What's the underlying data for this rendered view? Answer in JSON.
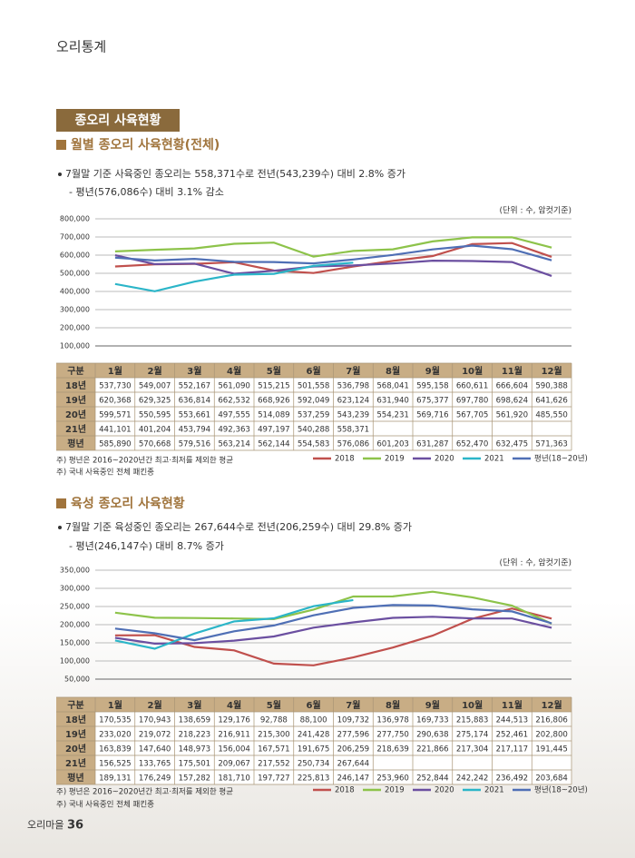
{
  "header": "오리통계",
  "section_title": "종오리 사육현황",
  "footer": {
    "magazine": "오리마을",
    "page": 36
  },
  "chart_data": [
    {
      "type": "line",
      "title": "월별 종오리 사육현황(전체)",
      "bullets": [
        "7월말 기준 사육중인 종오리는 558,371수로  전년(543,239수) 대비 2.8% 증가",
        "- 평년(576,086수) 대비 3.1% 감소"
      ],
      "unit": "(단위 : 수, 암컷기준)",
      "table_header": "구분",
      "categories": [
        "1월",
        "2월",
        "3월",
        "4월",
        "5월",
        "6월",
        "7월",
        "8월",
        "9월",
        "10월",
        "11월",
        "12월"
      ],
      "row_labels": [
        "18년",
        "19년",
        "20년",
        "21년",
        "평년"
      ],
      "notes": [
        "주) 평년은 2016~2020년간 최고·최저를 제외한 평균",
        "주) 국내 사육중인 전체 패킨종"
      ],
      "ylim": [
        100000,
        800000
      ],
      "grid": true,
      "yticks": [
        {
          "value": 100000,
          "label": "100,000"
        },
        {
          "value": 200000,
          "label": "200,000"
        },
        {
          "value": 300000,
          "label": "300,000"
        },
        {
          "value": 400000,
          "label": "400,000"
        },
        {
          "value": 500000,
          "label": "500,000"
        },
        {
          "value": 600000,
          "label": "600,000"
        },
        {
          "value": 700000,
          "label": "700,000"
        },
        {
          "value": 800000,
          "label": "800,000"
        }
      ],
      "series": [
        {
          "name": "2018",
          "color": "#c0504d",
          "values": [
            537730,
            549007,
            552167,
            561090,
            515215,
            501558,
            536798,
            568041,
            595158,
            660611,
            666604,
            590388
          ],
          "value_labels": [
            "537,730",
            "549,007",
            "552,167",
            "561,090",
            "515,215",
            "501,558",
            "536,798",
            "568,041",
            "595,158",
            "660,611",
            "666,604",
            "590,388"
          ]
        },
        {
          "name": "2019",
          "color": "#8dc34a",
          "values": [
            620368,
            629325,
            636814,
            662532,
            668926,
            592049,
            623124,
            631940,
            675377,
            697780,
            698624,
            641626
          ],
          "value_labels": [
            "620,368",
            "629,325",
            "636,814",
            "662,532",
            "668,926",
            "592,049",
            "623,124",
            "631,940",
            "675,377",
            "697,780",
            "698,624",
            "641,626"
          ]
        },
        {
          "name": "2020",
          "color": "#6b4fa0",
          "values": [
            599571,
            550595,
            553661,
            497555,
            514089,
            537259,
            543239,
            554231,
            569716,
            567705,
            561920,
            485550
          ],
          "value_labels": [
            "599,571",
            "550,595",
            "553,661",
            "497,555",
            "514,089",
            "537,259",
            "543,239",
            "554,231",
            "569,716",
            "567,705",
            "561,920",
            "485,550"
          ]
        },
        {
          "name": "2021",
          "color": "#2bb5c8",
          "values": [
            441101,
            401204,
            453794,
            492363,
            497197,
            540288,
            558371,
            null,
            null,
            null,
            null,
            null
          ],
          "value_labels": [
            "441,101",
            "401,204",
            "453,794",
            "492,363",
            "497,197",
            "540,288",
            "558,371",
            null,
            null,
            null,
            null,
            null
          ]
        },
        {
          "name": "평년(18~20년)",
          "color": "#4f6fb5",
          "values": [
            585890,
            570668,
            579516,
            563214,
            562144,
            554583,
            576086,
            601203,
            631287,
            652470,
            632475,
            571363
          ],
          "value_labels": [
            "585,890",
            "570,668",
            "579,516",
            "563,214",
            "562,144",
            "554,583",
            "576,086",
            "601,203",
            "631,287",
            "652,470",
            "632,475",
            "571,363"
          ]
        }
      ]
    },
    {
      "type": "line",
      "title": "육성 종오리 사육현황",
      "bullets": [
        "7월말 기준 육성중인 종오리는 267,644수로 전년(206,259수) 대비 29.8% 증가",
        "- 평년(246,147수) 대비 8.7% 증가"
      ],
      "unit": "(단위 : 수, 암컷기준)",
      "table_header": "구분",
      "categories": [
        "1월",
        "2월",
        "3월",
        "4월",
        "5월",
        "6월",
        "7월",
        "8월",
        "9월",
        "10월",
        "11월",
        "12월"
      ],
      "row_labels": [
        "18년",
        "19년",
        "20년",
        "21년",
        "평년"
      ],
      "notes": [
        "주) 평년은 2016~2020년간 최고·최저를 제외한 평균",
        "주) 국내 사육중인 전체 패킨종"
      ],
      "ylim": [
        50000,
        350000
      ],
      "grid": true,
      "yticks": [
        {
          "value": 50000,
          "label": "50,000"
        },
        {
          "value": 100000,
          "label": "100,000"
        },
        {
          "value": 150000,
          "label": "150,000"
        },
        {
          "value": 200000,
          "label": "200,000"
        },
        {
          "value": 250000,
          "label": "250,000"
        },
        {
          "value": 300000,
          "label": "300,000"
        },
        {
          "value": 350000,
          "label": "350,000"
        }
      ],
      "series": [
        {
          "name": "2018",
          "color": "#c0504d",
          "values": [
            170535,
            170943,
            138659,
            129176,
            92788,
            88100,
            109732,
            136978,
            169733,
            215883,
            244513,
            216806
          ],
          "value_labels": [
            "170,535",
            "170,943",
            "138,659",
            "129,176",
            "92,788",
            "88,100",
            "109,732",
            "136,978",
            "169,733",
            "215,883",
            "244,513",
            "216,806"
          ]
        },
        {
          "name": "2019",
          "color": "#8dc34a",
          "values": [
            233020,
            219072,
            218223,
            216911,
            215300,
            241428,
            277596,
            277750,
            290638,
            275174,
            252461,
            202800
          ],
          "value_labels": [
            "233,020",
            "219,072",
            "218,223",
            "216,911",
            "215,300",
            "241,428",
            "277,596",
            "277,750",
            "290,638",
            "275,174",
            "252,461",
            "202,800"
          ]
        },
        {
          "name": "2020",
          "color": "#6b4fa0",
          "values": [
            163839,
            147640,
            148973,
            156004,
            167571,
            191675,
            206259,
            218639,
            221866,
            217304,
            217117,
            191445
          ],
          "value_labels": [
            "163,839",
            "147,640",
            "148,973",
            "156,004",
            "167,571",
            "191,675",
            "206,259",
            "218,639",
            "221,866",
            "217,304",
            "217,117",
            "191,445"
          ]
        },
        {
          "name": "2021",
          "color": "#2bb5c8",
          "values": [
            156525,
            133765,
            175501,
            209067,
            217552,
            250734,
            267644,
            null,
            null,
            null,
            null,
            null
          ],
          "value_labels": [
            "156,525",
            "133,765",
            "175,501",
            "209,067",
            "217,552",
            "250,734",
            "267,644",
            null,
            null,
            null,
            null,
            null
          ]
        },
        {
          "name": "평년(18~20년)",
          "color": "#4f6fb5",
          "values": [
            189131,
            176249,
            157282,
            181710,
            197727,
            225813,
            246147,
            253960,
            252844,
            242242,
            236492,
            203684
          ],
          "value_labels": [
            "189,131",
            "176,249",
            "157,282",
            "181,710",
            "197,727",
            "225,813",
            "246,147",
            "253,960",
            "252,844",
            "242,242",
            "236,492",
            "203,684"
          ]
        }
      ]
    }
  ]
}
